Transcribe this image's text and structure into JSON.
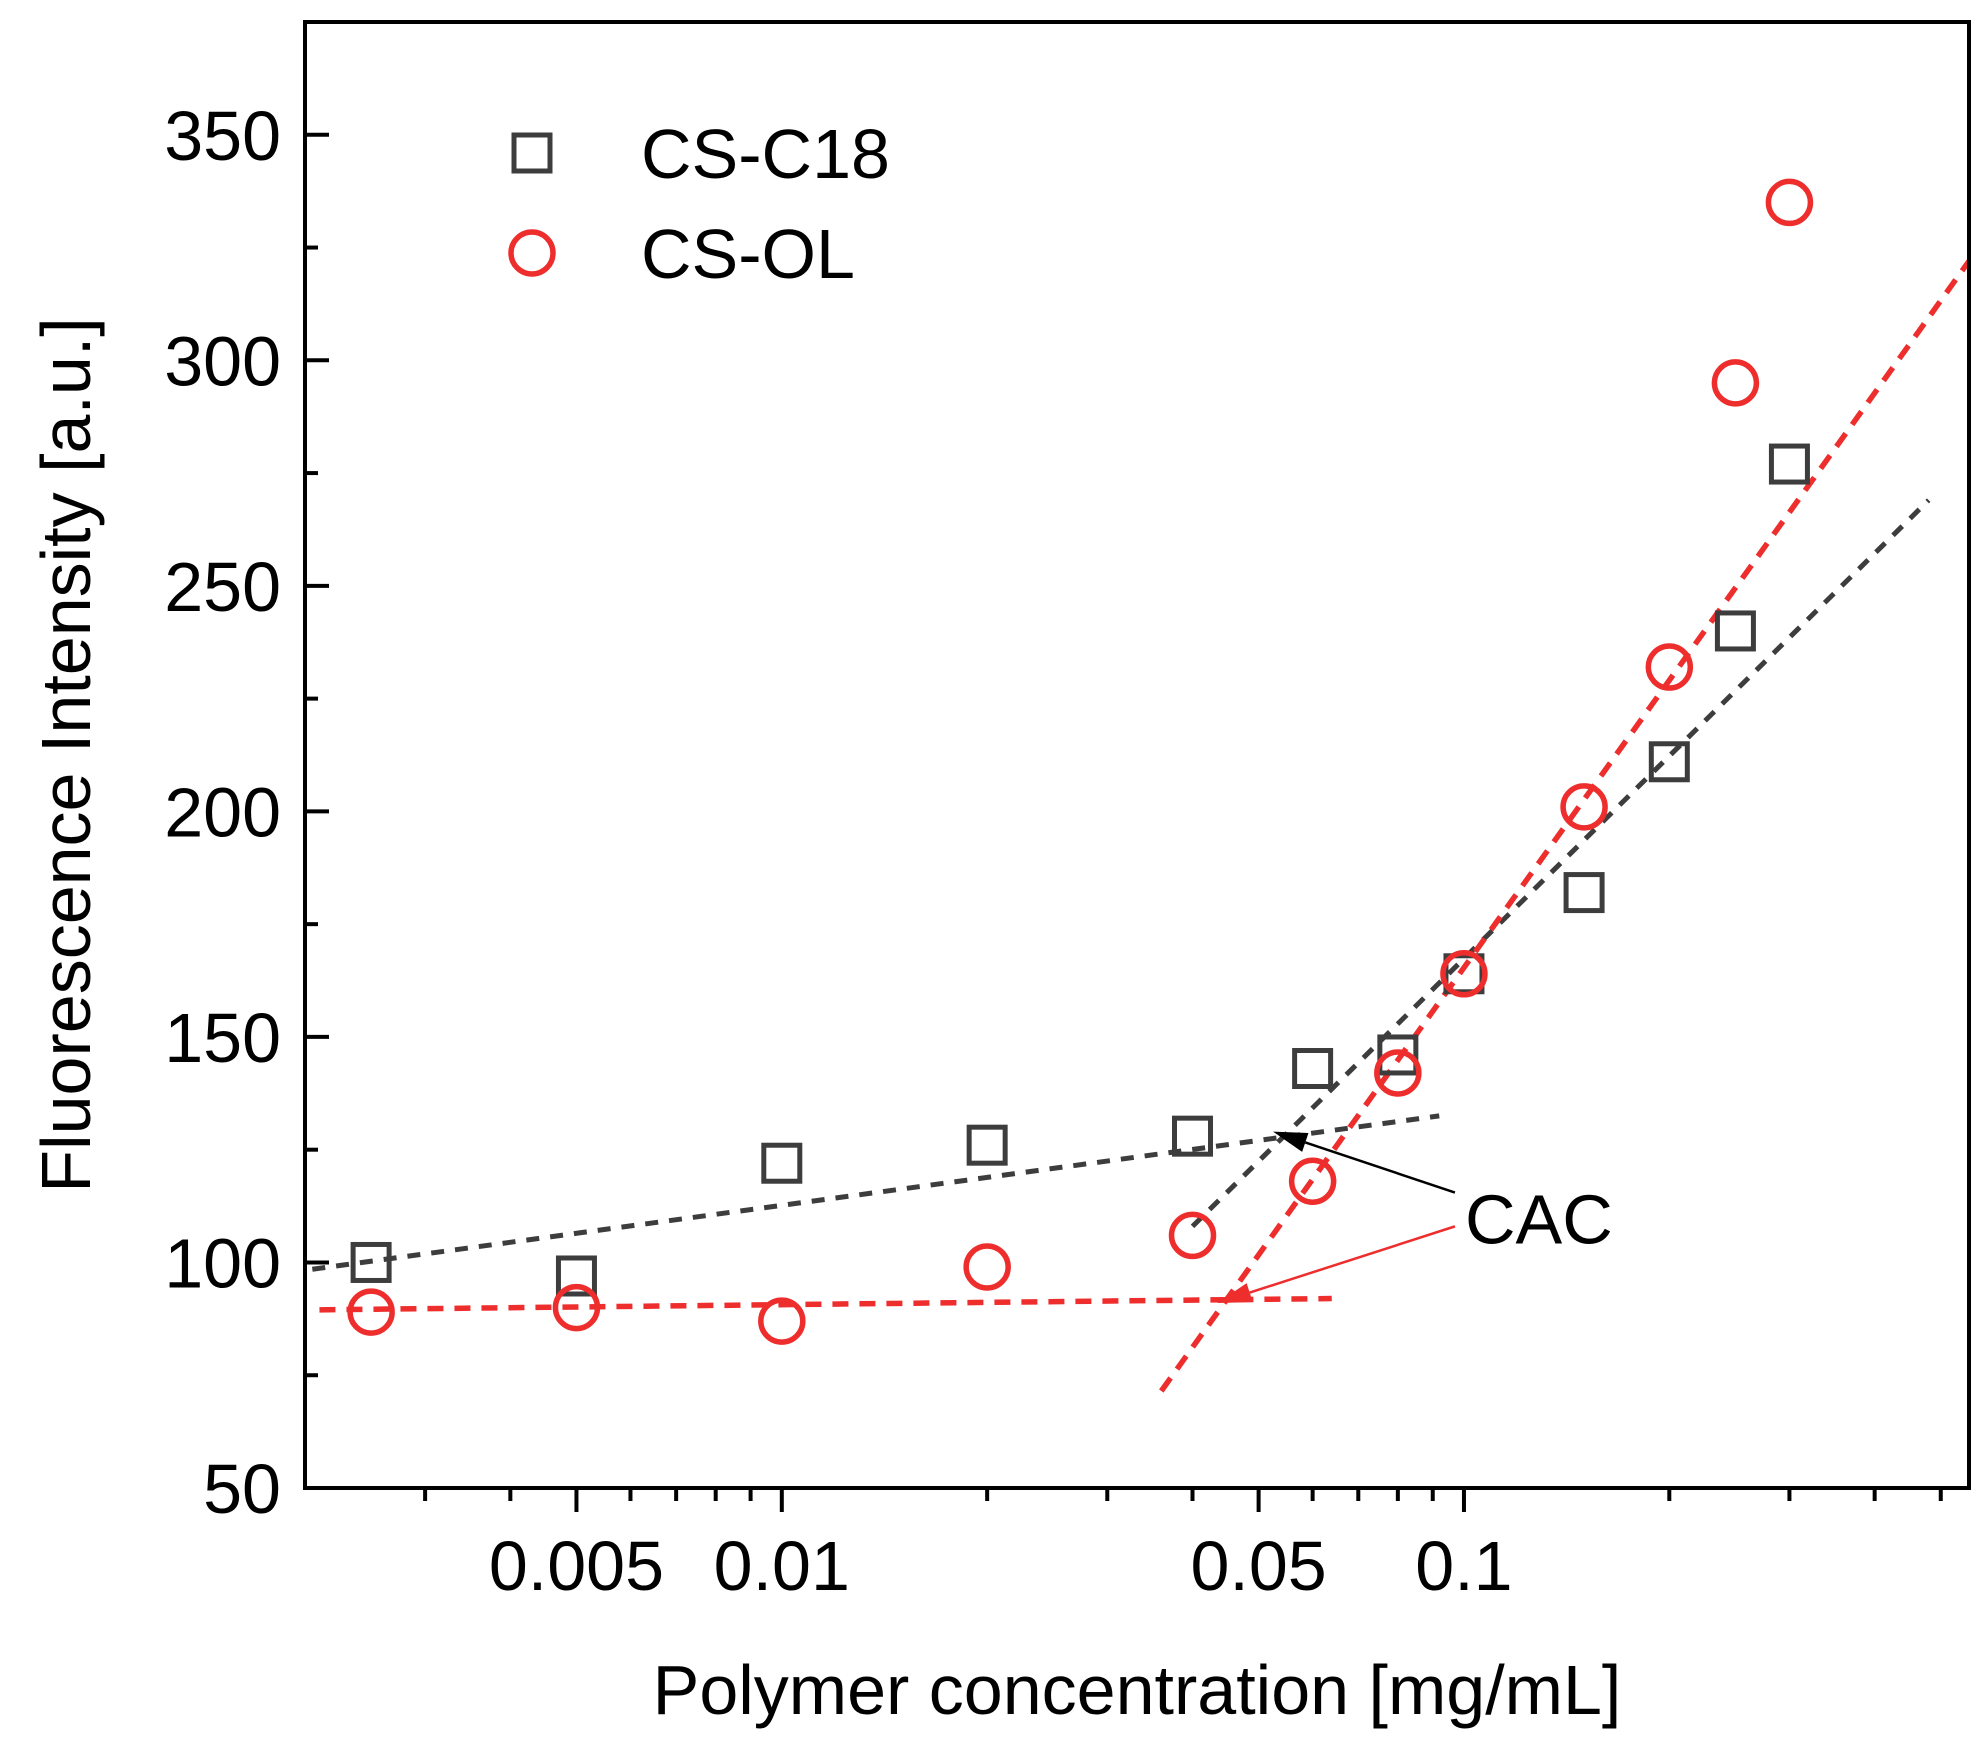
{
  "chart_data": {
    "type": "scatter",
    "title": "",
    "xlabel": "Polymer concentration [mg/mL]",
    "ylabel": "Fluorescence Intensity [a.u.]",
    "x_scale": "log",
    "xlim": [
      0.002,
      0.55
    ],
    "ylim": [
      50,
      375
    ],
    "x_ticks": [
      0.005,
      0.01,
      0.05,
      0.1
    ],
    "x_tick_labels": [
      "0.005",
      "0.01",
      "0.05",
      "0.1"
    ],
    "x_minor_ticks": [
      0.003,
      0.004,
      0.006,
      0.007,
      0.008,
      0.009,
      0.02,
      0.03,
      0.04,
      0.06,
      0.07,
      0.08,
      0.09,
      0.2,
      0.3,
      0.4,
      0.5
    ],
    "y_ticks": [
      50,
      100,
      150,
      200,
      250,
      300,
      350
    ],
    "y_tick_labels": [
      "50",
      "100",
      "150",
      "200",
      "250",
      "300",
      "350"
    ],
    "y_minor_ticks": [
      75,
      125,
      175,
      225,
      275,
      325
    ],
    "legend_position": "top-left",
    "series": [
      {
        "name": "CS-C18",
        "marker": "square",
        "color": "#3d3d3d",
        "x": [
          0.0025,
          0.005,
          0.01,
          0.02,
          0.04,
          0.06,
          0.08,
          0.1,
          0.15,
          0.2,
          0.25,
          0.3
        ],
        "y": [
          100,
          97,
          122,
          126,
          128,
          143,
          146,
          164,
          182,
          211,
          240,
          277
        ]
      },
      {
        "name": "CS-OL",
        "marker": "circle",
        "color": "#ee2d2d",
        "x": [
          0.0025,
          0.005,
          0.01,
          0.02,
          0.04,
          0.06,
          0.08,
          0.1,
          0.15,
          0.2,
          0.25,
          0.3
        ],
        "y": [
          89,
          90,
          87,
          99,
          106,
          118,
          142,
          164,
          201,
          232,
          295,
          335
        ]
      }
    ],
    "fit_lines": [
      {
        "series": "CS-C18",
        "color": "#3d3d3d",
        "x": [
          0.00205,
          0.092
        ],
        "y": [
          98.5,
          132.5
        ]
      },
      {
        "series": "CS-C18",
        "color": "#3d3d3d",
        "x": [
          0.04,
          0.48
        ],
        "y": [
          108,
          269
        ]
      },
      {
        "series": "CS-OL",
        "color": "#ee2d2d",
        "x": [
          0.0021,
          0.064
        ],
        "y": [
          89.5,
          92
        ]
      },
      {
        "series": "CS-OL",
        "color": "#ee2d2d",
        "x": [
          0.036,
          0.55
        ],
        "y": [
          71.5,
          322
        ]
      }
    ],
    "annotations": [
      {
        "text": "CAC",
        "label_anchor": [
          0.1,
          110
        ],
        "arrows": [
          {
            "color": "#000000",
            "from": [
              0.097,
              115.5
            ],
            "to": [
              0.0525,
              129
            ]
          },
          {
            "color": "#ee2d2d",
            "from": [
              0.097,
              108
            ],
            "to": [
              0.0435,
              91
            ]
          }
        ]
      }
    ]
  }
}
